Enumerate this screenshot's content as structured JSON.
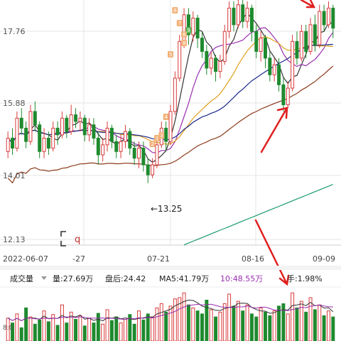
{
  "price_panel": {
    "y_labels": [
      "17.76",
      "15.88",
      "14.01",
      "12.13"
    ],
    "low_annotation": "←13.25",
    "low_value": 13.25,
    "ylim": [
      11.5,
      18.7
    ]
  },
  "x_axis": {
    "labels": [
      "2022-06-07",
      "-27",
      "07-21",
      "08-16",
      "09-09"
    ]
  },
  "volume_bar": {
    "selector_label": "成交量",
    "volume_text": "量:27.69万",
    "after_hours_text": "盘后:24.42",
    "ma5_text": "MA5:41.79万",
    "ma10_text": "10:48.55万",
    "turnover_text": "手:1.98%",
    "volume_axis_label": "8:0"
  },
  "colors": {
    "up": "#d93a3a",
    "down": "#1e8a2e",
    "ma5": "#333333",
    "ma10": "#9b2fb0",
    "ma20": "#e0a020",
    "ma60": "#1a2a8c",
    "ma120": "#8b3a1a",
    "ma250": "#1a9a6a",
    "arrow": "#e02020",
    "badge": "#f2b27a",
    "badge_green": "#58b85a",
    "grid": "#e4e4e4",
    "ma10_label": "#9b2fb0"
  },
  "badges": [
    "2",
    "1",
    "3",
    "4",
    "5",
    "6",
    "7",
    "8",
    "9",
    "6"
  ],
  "chart_data": {
    "type": "candlestick",
    "candles": [
      [
        14.2,
        14.6,
        14.8,
        14.0
      ],
      [
        14.6,
        14.3,
        14.9,
        14.1
      ],
      [
        14.3,
        15.2,
        15.4,
        14.2
      ],
      [
        15.2,
        14.9,
        15.5,
        14.7
      ],
      [
        14.9,
        14.5,
        15.1,
        14.3
      ],
      [
        14.5,
        15.4,
        15.6,
        14.4
      ],
      [
        15.4,
        15.0,
        15.7,
        14.8
      ],
      [
        15.0,
        14.2,
        15.1,
        14.0
      ],
      [
        14.2,
        14.6,
        14.9,
        14.0
      ],
      [
        14.6,
        14.3,
        14.8,
        14.1
      ],
      [
        14.3,
        14.9,
        15.1,
        14.2
      ],
      [
        14.9,
        14.7,
        15.1,
        14.4
      ],
      [
        14.7,
        15.2,
        15.4,
        14.6
      ],
      [
        15.2,
        14.8,
        15.3,
        14.6
      ],
      [
        14.8,
        15.3,
        15.6,
        14.7
      ],
      [
        15.3,
        15.1,
        15.5,
        14.9
      ],
      [
        15.1,
        15.2,
        15.4,
        14.8
      ],
      [
        15.2,
        14.7,
        15.3,
        14.5
      ],
      [
        14.7,
        15.0,
        15.2,
        14.5
      ],
      [
        15.0,
        14.6,
        15.2,
        14.4
      ],
      [
        14.6,
        14.1,
        14.8,
        13.8
      ],
      [
        14.1,
        14.4,
        14.6,
        13.9
      ],
      [
        14.4,
        14.9,
        15.1,
        14.2
      ],
      [
        14.9,
        14.5,
        15.0,
        14.3
      ],
      [
        14.5,
        14.2,
        14.7,
        14.0
      ],
      [
        14.2,
        14.5,
        14.7,
        14.0
      ],
      [
        14.5,
        14.8,
        15.0,
        14.3
      ],
      [
        14.8,
        14.3,
        14.9,
        14.1
      ],
      [
        14.3,
        14.0,
        14.5,
        13.8
      ],
      [
        14.0,
        14.3,
        14.5,
        13.7
      ],
      [
        14.3,
        13.8,
        14.5,
        13.6
      ],
      [
        13.8,
        13.5,
        14.0,
        13.25
      ],
      [
        13.5,
        13.8,
        14.0,
        13.4
      ],
      [
        13.8,
        14.4,
        14.6,
        13.7
      ],
      [
        14.4,
        14.9,
        15.1,
        14.3
      ],
      [
        14.9,
        14.5,
        15.1,
        14.2
      ],
      [
        14.5,
        15.4,
        15.6,
        14.4
      ],
      [
        15.4,
        16.4,
        16.6,
        15.3
      ],
      [
        16.4,
        17.5,
        17.7,
        16.3
      ],
      [
        17.5,
        18.3,
        18.5,
        17.3
      ],
      [
        18.3,
        17.7,
        18.5,
        17.4
      ],
      [
        17.7,
        18.2,
        18.4,
        17.5
      ],
      [
        18.2,
        17.6,
        18.3,
        17.3
      ],
      [
        17.6,
        17.2,
        17.8,
        17.0
      ],
      [
        17.2,
        16.7,
        17.4,
        16.5
      ],
      [
        16.7,
        17.0,
        17.2,
        16.5
      ],
      [
        17.0,
        16.6,
        17.1,
        16.3
      ],
      [
        16.6,
        16.9,
        17.1,
        16.4
      ],
      [
        16.9,
        17.8,
        18.0,
        16.8
      ],
      [
        17.8,
        18.5,
        18.7,
        17.6
      ],
      [
        18.5,
        18.0,
        18.7,
        17.8
      ],
      [
        18.0,
        18.6,
        18.8,
        17.9
      ],
      [
        18.6,
        18.1,
        18.8,
        17.9
      ],
      [
        18.1,
        18.5,
        18.7,
        17.9
      ],
      [
        18.5,
        17.8,
        18.6,
        17.5
      ],
      [
        17.8,
        17.2,
        18.0,
        17.0
      ],
      [
        17.2,
        17.6,
        17.8,
        16.9
      ],
      [
        17.6,
        17.0,
        17.7,
        16.7
      ],
      [
        17.0,
        16.5,
        17.2,
        16.3
      ],
      [
        16.5,
        16.8,
        17.0,
        16.3
      ],
      [
        16.8,
        16.2,
        17.0,
        16.0
      ],
      [
        16.2,
        15.6,
        16.4,
        15.4
      ],
      [
        15.6,
        16.1,
        16.3,
        15.5
      ],
      [
        16.1,
        17.5,
        17.7,
        16.0
      ],
      [
        17.5,
        17.0,
        17.8,
        16.8
      ],
      [
        17.0,
        17.8,
        18.0,
        16.9
      ],
      [
        17.8,
        17.2,
        18.0,
        17.0
      ],
      [
        17.2,
        18.0,
        18.2,
        17.1
      ],
      [
        18.0,
        17.4,
        18.3,
        17.2
      ],
      [
        17.4,
        18.4,
        18.6,
        17.3
      ],
      [
        18.4,
        18.0,
        18.6,
        17.8
      ],
      [
        18.0,
        18.5,
        18.7,
        17.9
      ],
      [
        18.5,
        17.9,
        18.6,
        17.6
      ]
    ],
    "volume": [
      38,
      30,
      45,
      22,
      55,
      40,
      28,
      35,
      50,
      32,
      44,
      26,
      60,
      30,
      48,
      36,
      42,
      25,
      38,
      30,
      46,
      28,
      52,
      34,
      40,
      30,
      36,
      44,
      28,
      50,
      35,
      45,
      40,
      55,
      62,
      48,
      58,
      70,
      72,
      80,
      60,
      55,
      50,
      45,
      68,
      52,
      40,
      48,
      62,
      78,
      58,
      66,
      50,
      60,
      45,
      40,
      55,
      48,
      42,
      50,
      58,
      62,
      45,
      80,
      55,
      66,
      48,
      72,
      52,
      60,
      42,
      50,
      40
    ]
  }
}
